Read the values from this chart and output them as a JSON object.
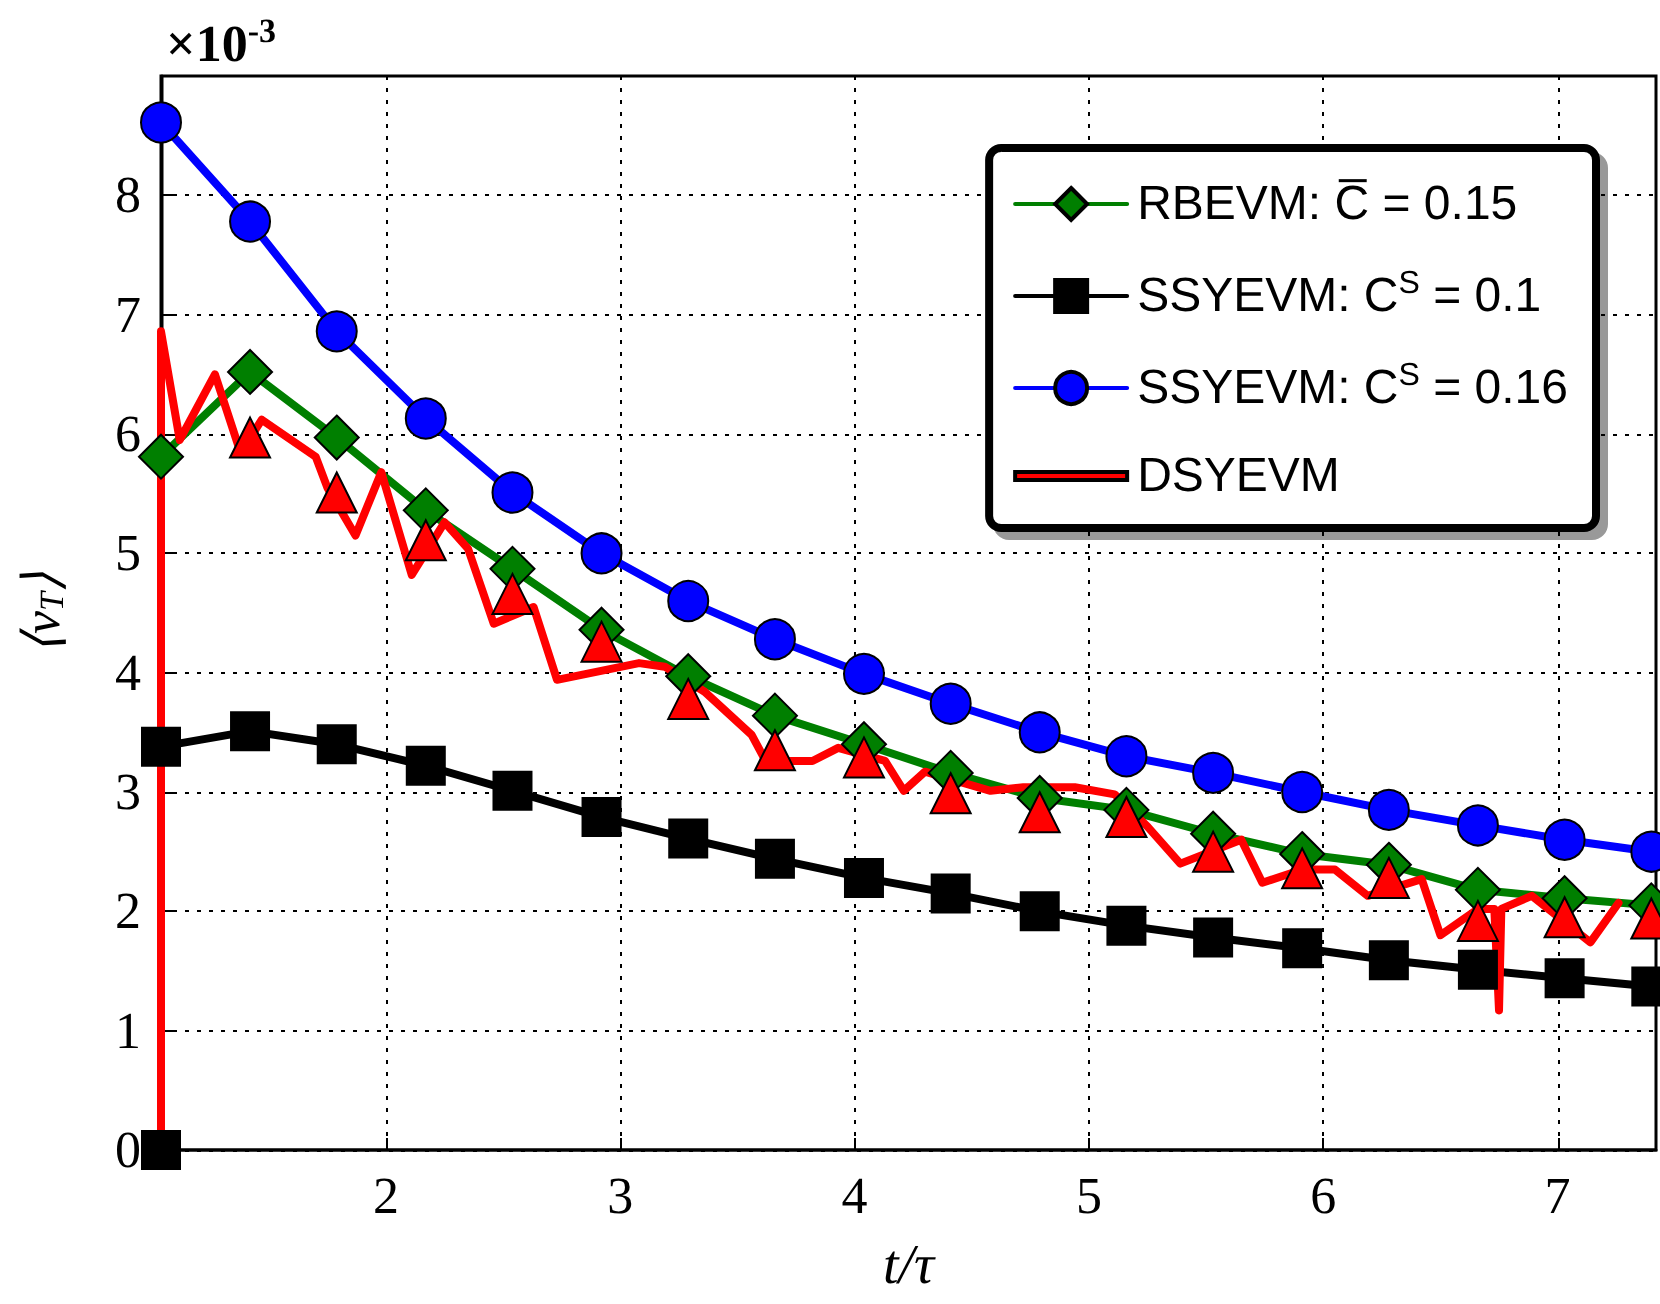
{
  "chart_data": {
    "type": "line",
    "xlabel": "t/τ",
    "ylabel": "⟨ν$_{T}$⟩",
    "annotations": [
      "×10$^{-3}$"
    ],
    "xlim": [
      1.04,
      7.42
    ],
    "xticks": [
      2,
      3,
      4,
      5,
      6,
      7
    ],
    "ylim": [
      0,
      9
    ],
    "yticks": [
      0,
      1,
      2,
      3,
      4,
      5,
      6,
      7,
      8
    ],
    "grid": true,
    "legend": "top right",
    "series": [
      {
        "name": "RBEVM: C̅ = 0.15",
        "color": "#007f00",
        "marker": "diamond",
        "x": [
          1.04,
          1.42,
          1.79,
          2.17,
          2.54,
          2.92,
          3.29,
          3.66,
          4.04,
          4.41,
          4.79,
          5.16,
          5.53,
          5.91,
          6.28,
          6.66,
          7.03,
          7.4
        ],
        "values": [
          5.81,
          6.52,
          5.97,
          5.36,
          4.87,
          4.36,
          3.97,
          3.64,
          3.4,
          3.16,
          2.95,
          2.85,
          2.65,
          2.48,
          2.39,
          2.18,
          2.11,
          2.05
        ]
      },
      {
        "name": "SSYEVM: C$^{S}$ = 0.1",
        "color": "#000000",
        "marker": "square",
        "x": [
          1.04,
          1.04,
          1.42,
          1.79,
          2.17,
          2.54,
          2.92,
          3.29,
          3.66,
          4.04,
          4.41,
          4.79,
          5.16,
          5.53,
          5.91,
          6.28,
          6.66,
          7.03,
          7.4
        ],
        "values": [
          0,
          3.38,
          3.51,
          3.4,
          3.22,
          3.01,
          2.79,
          2.61,
          2.44,
          2.28,
          2.15,
          2.0,
          1.88,
          1.78,
          1.69,
          1.59,
          1.51,
          1.44,
          1.37
        ]
      },
      {
        "name": "SSYEVM: C$^{S}$ = 0.16",
        "color": "#0000ff",
        "marker": "circle",
        "x": [
          1.04,
          1.42,
          1.79,
          2.17,
          2.54,
          2.92,
          3.29,
          3.66,
          4.04,
          4.41,
          4.79,
          5.16,
          5.53,
          5.91,
          6.28,
          6.66,
          7.03,
          7.4
        ],
        "values": [
          8.61,
          7.78,
          6.86,
          6.13,
          5.51,
          5.0,
          4.6,
          4.28,
          3.99,
          3.74,
          3.5,
          3.3,
          3.16,
          3.0,
          2.85,
          2.72,
          2.6,
          2.5
        ]
      },
      {
        "name": "DSYEVM",
        "color": "#ff0000",
        "marker": "none",
        "x": [
          1.04,
          1.04,
          1.12,
          1.27,
          1.38,
          1.47,
          1.7,
          1.75,
          1.87,
          1.98,
          2.11,
          2.25,
          2.35,
          2.46,
          2.63,
          2.73,
          3.08,
          3.19,
          3.36,
          3.56,
          3.62,
          3.82,
          3.93,
          4.13,
          4.21,
          4.3,
          4.58,
          4.72,
          4.94,
          5.11,
          5.25,
          5.39,
          5.65,
          5.74,
          5.91,
          6.05,
          6.19,
          6.42,
          6.5,
          6.66,
          6.73,
          6.75,
          6.76,
          6.89,
          7.14,
          7.26
        ],
        "values": [
          0,
          6.86,
          5.95,
          6.5,
          5.84,
          6.12,
          5.81,
          5.55,
          5.15,
          5.68,
          4.82,
          5.26,
          5.04,
          4.41,
          4.55,
          3.94,
          4.08,
          4.05,
          3.84,
          3.48,
          3.26,
          3.26,
          3.37,
          3.26,
          3.01,
          3.17,
          3.01,
          3.04,
          3.04,
          2.98,
          2.71,
          2.4,
          2.6,
          2.24,
          2.35,
          2.35,
          2.13,
          2.27,
          1.8,
          2.02,
          2.02,
          1.17,
          2.02,
          2.13,
          1.74,
          2.07
        ]
      },
      {
        "type": "scatter",
        "color": "#ff0000",
        "marker": "triangle",
        "x": [
          1.42,
          1.79,
          2.17,
          2.54,
          2.92,
          3.29,
          3.66,
          4.04,
          4.41,
          4.79,
          5.16,
          5.53,
          5.91,
          6.28,
          6.66,
          7.03,
          7.4
        ],
        "values": [
          5.97,
          5.51,
          5.11,
          4.66,
          4.26,
          3.78,
          3.35,
          3.29,
          2.99,
          2.83,
          2.79,
          2.5,
          2.36,
          2.28,
          1.92,
          1.95,
          1.94
        ]
      }
    ]
  }
}
